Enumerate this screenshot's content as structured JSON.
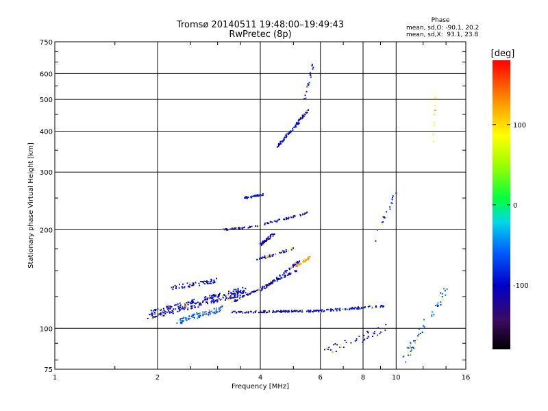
{
  "chart_data": {
    "type": "scatter",
    "title": "Tromsø 20140511 19:48:00–19:49:43",
    "subtitle": "RwPretec (8p)",
    "xlabel": "Frequency [MHz]",
    "ylabel": "Stationary phase Virtual Height [km]",
    "x_scale": "log",
    "y_scale": "log",
    "xlim": [
      1,
      16
    ],
    "ylim": [
      75,
      750
    ],
    "x_ticks": [
      1,
      2,
      4,
      6,
      8,
      10,
      16
    ],
    "y_ticks": [
      75,
      100,
      200,
      300,
      400,
      500,
      600,
      750
    ],
    "grid": true,
    "phase_box": {
      "title": "Phase",
      "line_o": "mean, sd,O: -90.1, 20.2",
      "line_x": "mean, sd,X:  93.1, 23.8"
    },
    "colorbar": {
      "label": "[deg]",
      "range": [
        -180,
        180
      ],
      "ticks": [
        100,
        0,
        -100
      ]
    },
    "traces": [
      {
        "x": [
          1.9,
          3.6
        ],
        "y": [
          110,
          130
        ],
        "n": 260,
        "phase": -100,
        "jitter": 0.06
      },
      {
        "x": [
          2.3,
          3.1
        ],
        "y": [
          105,
          115
        ],
        "n": 90,
        "phase": -60,
        "jitter": 0.04
      },
      {
        "x": [
          2.2,
          3.0
        ],
        "y": [
          133,
          140
        ],
        "n": 60,
        "phase": -100,
        "jitter": 0.03
      },
      {
        "x": [
          3.3,
          6.0
        ],
        "y": [
          112,
          113
        ],
        "n": 120,
        "phase": -105,
        "jitter": 0.012
      },
      {
        "x": [
          6.0,
          9.3
        ],
        "y": [
          113,
          117
        ],
        "n": 70,
        "phase": -100,
        "jitter": 0.015
      },
      {
        "x": [
          3.3,
          5.1
        ],
        "y": [
          120,
          150
        ],
        "n": 90,
        "phase": -100,
        "jitter": 0.012
      },
      {
        "x": [
          4.0,
          5.2
        ],
        "y": [
          130,
          160
        ],
        "n": 60,
        "phase": -100,
        "jitter": 0.015
      },
      {
        "x": [
          5.1,
          5.6
        ],
        "y": [
          155,
          165
        ],
        "n": 40,
        "phase": 120,
        "jitter": 0.015
      },
      {
        "x": [
          3.9,
          5.0
        ],
        "y": [
          162,
          175
        ],
        "n": 40,
        "phase": -100,
        "jitter": 0.015
      },
      {
        "x": [
          4.0,
          4.4
        ],
        "y": [
          180,
          195
        ],
        "n": 40,
        "phase": -110,
        "jitter": 0.02
      },
      {
        "x": [
          3.1,
          4.0
        ],
        "y": [
          200,
          205
        ],
        "n": 40,
        "phase": -100,
        "jitter": 0.01
      },
      {
        "x": [
          4.1,
          5.5
        ],
        "y": [
          208,
          225
        ],
        "n": 40,
        "phase": -100,
        "jitter": 0.012
      },
      {
        "x": [
          3.6,
          4.1
        ],
        "y": [
          250,
          257
        ],
        "n": 30,
        "phase": -100,
        "jitter": 0.015
      },
      {
        "x": [
          4.5,
          5.6
        ],
        "y": [
          360,
          470
        ],
        "n": 80,
        "phase": -100,
        "jitter": 0.02
      },
      {
        "x": [
          5.4,
          5.7
        ],
        "y": [
          500,
          640
        ],
        "n": 20,
        "phase": -90,
        "jitter": 0.03
      },
      {
        "x": [
          6.2,
          9.5
        ],
        "y": [
          85,
          100
        ],
        "n": 40,
        "phase": -90,
        "jitter": 0.06
      },
      {
        "x": [
          8.5,
          10.0
        ],
        "y": [
          180,
          260
        ],
        "n": 20,
        "phase": -80,
        "jitter": 0.05
      },
      {
        "x": [
          10.5,
          14.0
        ],
        "y": [
          80,
          130
        ],
        "n": 50,
        "phase": -60,
        "jitter": 0.06
      },
      {
        "x": [
          12.8,
          13.2
        ],
        "y": [
          350,
          600
        ],
        "n": 10,
        "phase": 80,
        "jitter": 0.02
      }
    ]
  }
}
